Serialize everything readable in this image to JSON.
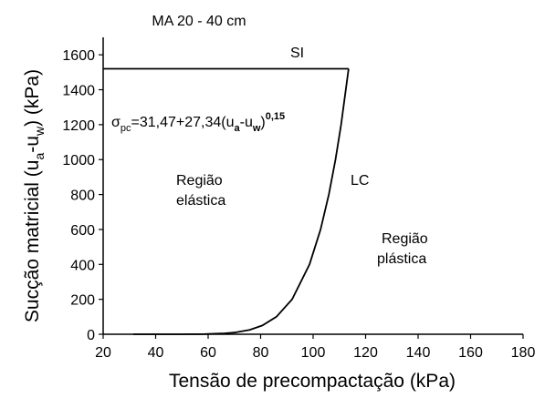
{
  "chart_data": {
    "type": "line",
    "title": "MA  20 - 40 cm",
    "x_label": "Tensão de precompactação (kPa)",
    "y_label_parts": [
      "Sucção matricial (u",
      "a",
      "-u",
      "w",
      ") (kPa)"
    ],
    "equation_parts": [
      "σ",
      "pc",
      "=31,47+27,34(u",
      "a",
      "-u",
      "w",
      ")",
      "0,15"
    ],
    "annotations": [
      "SI",
      "LC",
      "Região",
      "elástica",
      "Região",
      "plástica"
    ],
    "xlim": [
      20,
      180
    ],
    "ylim": [
      0,
      1700
    ],
    "xticks": [
      20,
      40,
      60,
      80,
      100,
      120,
      140,
      160,
      180
    ],
    "yticks": [
      0,
      200,
      400,
      600,
      800,
      1000,
      1200,
      1400,
      1600
    ],
    "series": [
      {
        "color": "#000000",
        "x": [
          31.47,
          41.17,
          45.17,
          50.83,
          58.81,
          66.27,
          70.09,
          75.78,
          80.64,
          86.02,
          92.0,
          98.63,
          102.84,
          105.99,
          108.52,
          110.66,
          113.52
        ],
        "values": [
          0,
          0.001,
          0.01,
          0.1,
          1,
          5,
          10,
          25,
          50,
          100,
          200,
          400,
          600,
          800,
          1000,
          1200,
          1520
        ]
      },
      {
        "color": "#000000",
        "x": [
          20,
          113.52
        ],
        "values": [
          1520,
          1520
        ]
      }
    ]
  }
}
